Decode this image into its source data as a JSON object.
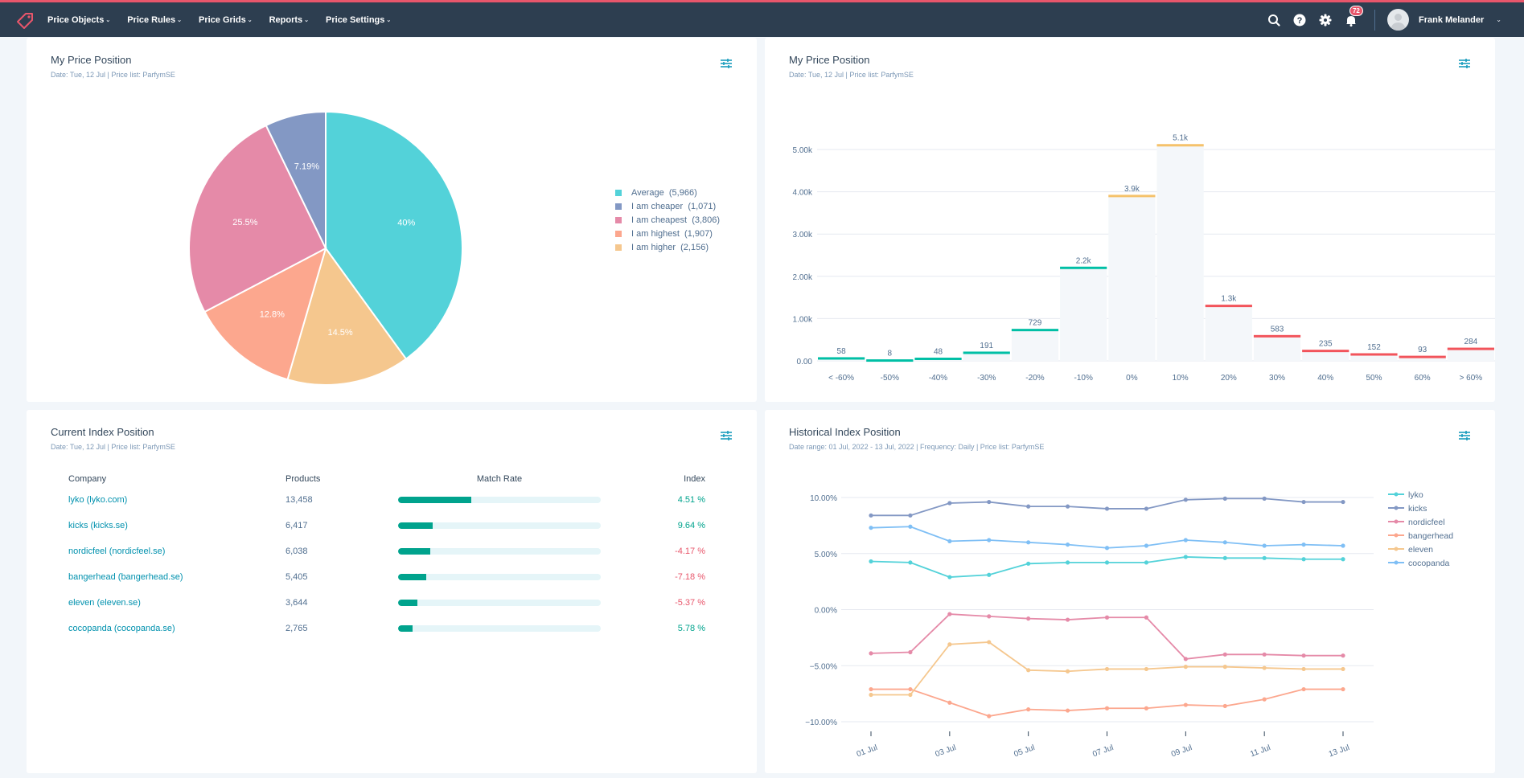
{
  "nav": {
    "items": [
      {
        "label": "Price Objects"
      },
      {
        "label": "Price Rules"
      },
      {
        "label": "Price Grids"
      },
      {
        "label": "Reports"
      },
      {
        "label": "Price Settings"
      }
    ],
    "notifications_count": "72",
    "user_name": "Frank Melander",
    "icons": [
      "search-icon",
      "help-icon",
      "gear-icon",
      "bell-icon"
    ]
  },
  "colors": {
    "accent": "#e8566b",
    "navbar": "#2d3e50",
    "teal": "#00a38d",
    "positive": "#00a38d",
    "negative": "#e8566b"
  },
  "pie_card": {
    "title": "My Price Position",
    "subtitle": "Date: Tue, 12 Jul | Price list: ParfymSE"
  },
  "bar_card": {
    "title": "My Price Position",
    "subtitle": "Date: Tue, 12 Jul | Price list: ParfymSE"
  },
  "table_card": {
    "title": "Current Index Position",
    "subtitle": "Date: Tue, 12 Jul | Price list: ParfymSE",
    "headers": {
      "company": "Company",
      "products": "Products",
      "match_rate": "Match Rate",
      "index": "Index"
    },
    "rows": [
      {
        "company": "lyko (lyko.com)",
        "products": "13,458",
        "match_rate": 0.36,
        "index": "4.51 %",
        "sign": "pos"
      },
      {
        "company": "kicks (kicks.se)",
        "products": "6,417",
        "match_rate": 0.17,
        "index": "9.64 %",
        "sign": "pos"
      },
      {
        "company": "nordicfeel (nordicfeel.se)",
        "products": "6,038",
        "match_rate": 0.16,
        "index": "-4.17 %",
        "sign": "neg"
      },
      {
        "company": "bangerhead (bangerhead.se)",
        "products": "5,405",
        "match_rate": 0.14,
        "index": "-7.18 %",
        "sign": "neg"
      },
      {
        "company": "eleven (eleven.se)",
        "products": "3,644",
        "match_rate": 0.095,
        "index": "-5.37 %",
        "sign": "neg"
      },
      {
        "company": "cocopanda (cocopanda.se)",
        "products": "2,765",
        "match_rate": 0.07,
        "index": "5.78 %",
        "sign": "pos"
      }
    ]
  },
  "line_card": {
    "title": "Historical Index Position",
    "subtitle": "Date range: 01 Jul, 2022 - 13 Jul, 2022 | Frequency: Daily | Price list: ParfymSE"
  },
  "chart_data": [
    {
      "type": "pie",
      "title": "My Price Position",
      "legend_position": "right",
      "slices": [
        {
          "label": "Average",
          "count": "5,966",
          "value": 40,
          "label_text": "40%",
          "color": "#53d2d9"
        },
        {
          "label": "I am higher",
          "count": "2,156",
          "value": 14.5,
          "label_text": "14.5%",
          "color": "#f5c78e"
        },
        {
          "label": "I am highest",
          "count": "1,907",
          "value": 12.8,
          "label_text": "12.8%",
          "color": "#fca78e"
        },
        {
          "label": "I am cheapest",
          "count": "3,806",
          "value": 25.5,
          "label_text": "25.5%",
          "color": "#e58aa8"
        },
        {
          "label": "I am cheaper",
          "count": "1,071",
          "value": 7.19,
          "label_text": "7.19%",
          "color": "#8398c4"
        }
      ],
      "legend_order": [
        "Average",
        "I am cheaper",
        "I am cheapest",
        "I am highest",
        "I am higher"
      ]
    },
    {
      "type": "bar",
      "title": "My Price Position",
      "categories": [
        "< -60%",
        "-50%",
        "-40%",
        "-30%",
        "-20%",
        "-10%",
        "0%",
        "10%",
        "20%",
        "30%",
        "40%",
        "50%",
        "60%",
        "> 60%"
      ],
      "values": [
        58,
        8,
        48,
        191,
        729,
        2200,
        3900,
        5100,
        1300,
        583,
        235,
        152,
        93,
        284
      ],
      "data_labels": [
        "58",
        "8",
        "48",
        "191",
        "729",
        "2.2k",
        "3.9k",
        "5.1k",
        "1.3k",
        "583",
        "235",
        "152",
        "93",
        "284"
      ],
      "marker_colors": [
        "#00bfa5",
        "#00bfa5",
        "#00bfa5",
        "#00bfa5",
        "#00bfa5",
        "#00bfa5",
        "#f5c26b",
        "#f5c26b",
        "#f2545b",
        "#f2545b",
        "#f2545b",
        "#f2545b",
        "#f2545b",
        "#f2545b"
      ],
      "yticks": [
        "0.00",
        "1.00k",
        "2.00k",
        "3.00k",
        "4.00k",
        "5.00k"
      ],
      "ylim": [
        0,
        5300
      ],
      "grid": true
    },
    {
      "type": "line",
      "title": "Historical Index Position",
      "x": [
        "01 Jul",
        "02 Jul",
        "03 Jul",
        "04 Jul",
        "05 Jul",
        "06 Jul",
        "07 Jul",
        "08 Jul",
        "09 Jul",
        "10 Jul",
        "11 Jul",
        "12 Jul",
        "13 Jul"
      ],
      "xticks": [
        "01 Jul",
        "03 Jul",
        "05 Jul",
        "07 Jul",
        "09 Jul",
        "11 Jul",
        "13 Jul"
      ],
      "yticks": [
        "10.00%",
        "5.00%",
        "0.00%",
        "−5.00%",
        "−10.00%"
      ],
      "ylim": [
        -10,
        10
      ],
      "grid": true,
      "legend_position": "right",
      "series": [
        {
          "name": "lyko",
          "color": "#53d2d9",
          "values": [
            4.3,
            4.2,
            2.9,
            3.1,
            4.1,
            4.2,
            4.2,
            4.2,
            4.7,
            4.6,
            4.6,
            4.5,
            4.5
          ]
        },
        {
          "name": "kicks",
          "color": "#8398c4",
          "values": [
            8.4,
            8.4,
            9.5,
            9.6,
            9.2,
            9.2,
            9.0,
            9.0,
            9.8,
            9.9,
            9.9,
            9.6,
            9.6
          ]
        },
        {
          "name": "nordicfeel",
          "color": "#e58aa8",
          "values": [
            -3.9,
            -3.8,
            -0.4,
            -0.6,
            -0.8,
            -0.9,
            -0.7,
            -0.7,
            -4.4,
            -4.0,
            -4.0,
            -4.1,
            -4.1
          ]
        },
        {
          "name": "bangerhead",
          "color": "#fca78e",
          "values": [
            -7.1,
            -7.1,
            -8.3,
            -9.5,
            -8.9,
            -9.0,
            -8.8,
            -8.8,
            -8.5,
            -8.6,
            -8.0,
            -7.1,
            -7.1
          ]
        },
        {
          "name": "eleven",
          "color": "#f5c78e",
          "values": [
            -7.6,
            -7.6,
            -3.1,
            -2.9,
            -5.4,
            -5.5,
            -5.3,
            -5.3,
            -5.1,
            -5.1,
            -5.2,
            -5.3,
            -5.3
          ]
        },
        {
          "name": "cocopanda",
          "color": "#7fbff5",
          "values": [
            7.3,
            7.4,
            6.1,
            6.2,
            6.0,
            5.8,
            5.5,
            5.7,
            6.2,
            6.0,
            5.7,
            5.8,
            5.7
          ]
        }
      ]
    }
  ]
}
